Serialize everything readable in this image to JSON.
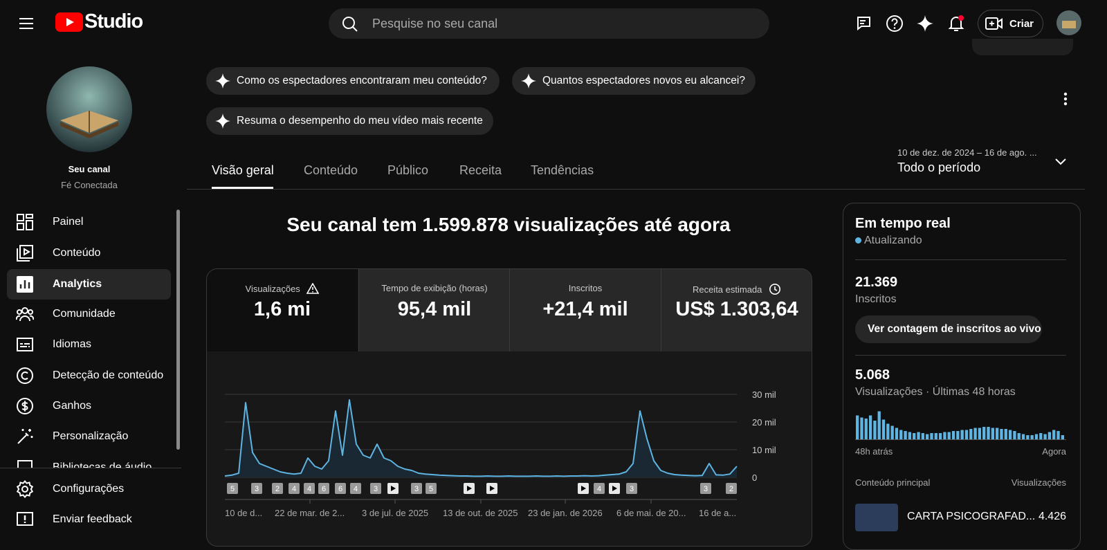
{
  "header": {
    "logo": "Studio",
    "search_placeholder": "Pesquise no seu canal",
    "create_button": "Criar"
  },
  "sidebar": {
    "channel_label": "Seu canal",
    "channel_name": "Fé Conectada",
    "menu": [
      "Painel",
      "Conteúdo",
      "Analytics",
      "Comunidade",
      "Idiomas",
      "Detecção de conteúdo",
      "Ganhos",
      "Personalização",
      "Bibliotecas de áudio"
    ],
    "footer": [
      "Configurações",
      "Enviar feedback"
    ]
  },
  "suggestions": [
    "Como os espectadores encontraram meu conteúdo?",
    "Quantos espectadores novos eu alcancei?",
    "Resuma o desempenho do meu vídeo mais recente"
  ],
  "tabs": [
    "Visão geral",
    "Conteúdo",
    "Público",
    "Receita",
    "Tendências"
  ],
  "date_range": {
    "dates": "10 de dez. de 2024 – 16 de ago. ...",
    "period": "Todo o período"
  },
  "headline": "Seu canal tem 1.599.878 visualizações até agora",
  "metrics": [
    {
      "label": "Visualizações",
      "value": "1,6 mi"
    },
    {
      "label": "Tempo de exibição (horas)",
      "value": "95,4 mil"
    },
    {
      "label": "Inscritos",
      "value": "+21,4 mil"
    },
    {
      "label": "Receita estimada",
      "value": "US$ 1.303,64"
    }
  ],
  "views_chart": {
    "type": "line",
    "color": "#5fb4e2",
    "ylim": [
      0,
      30000
    ],
    "yticks": [
      {
        "value": 0,
        "label": "0"
      },
      {
        "value": 10000,
        "label": "10 mil"
      },
      {
        "value": 20000,
        "label": "20 mil"
      },
      {
        "value": 30000,
        "label": "30 mil"
      }
    ],
    "xtick_labels": [
      "10 de d...",
      "22 de mar. de 2...",
      "3 de jul. de 2025",
      "13 de out. de 2025",
      "23 de jan. de 2026",
      "6 de mai. de 20...",
      "16 de a..."
    ],
    "markers": [
      "5",
      "3",
      "2",
      "4",
      "4",
      "6",
      "6",
      "4",
      "3",
      null,
      "3",
      "5",
      null,
      null,
      null,
      "4",
      null,
      "3",
      "3",
      "2"
    ],
    "values": [
      500,
      800,
      1500,
      27000,
      9000,
      5000,
      4000,
      3000,
      2000,
      1500,
      1200,
      1500,
      7000,
      4000,
      3000,
      6000,
      24000,
      8000,
      28000,
      12000,
      8000,
      7000,
      12000,
      7000,
      6000,
      4000,
      3000,
      2500,
      1500,
      1200,
      1000,
      800,
      700,
      600,
      500,
      500,
      400,
      400,
      500,
      400,
      400,
      500,
      400,
      400,
      400,
      500,
      400,
      400,
      500,
      400,
      500,
      500,
      600,
      500,
      600,
      800,
      1000,
      1200,
      2000,
      5000,
      24000,
      14000,
      6000,
      2500,
      1500,
      1000,
      800,
      700,
      600,
      700,
      5000,
      900,
      800,
      1200,
      4000
    ]
  },
  "realtime": {
    "title": "Em tempo real",
    "status": "Atualizando",
    "subscribers": "21.369",
    "subscribers_label": "Inscritos",
    "live_button": "Ver contagem de inscritos ao vivo",
    "views": "5.068",
    "views_label": "Visualizações · Últimas 48 horas",
    "start_label": "48h atrás",
    "end_label": "Agora",
    "views_48h": {
      "type": "bar",
      "color": "#5fb4e2",
      "values": [
        230,
        210,
        200,
        230,
        180,
        270,
        190,
        150,
        130,
        110,
        90,
        80,
        70,
        60,
        70,
        60,
        50,
        60,
        60,
        60,
        70,
        70,
        80,
        80,
        90,
        90,
        100,
        110,
        110,
        120,
        120,
        110,
        110,
        100,
        100,
        90,
        80,
        60,
        50,
        40,
        40,
        50,
        60,
        50,
        70,
        90,
        80,
        40
      ]
    },
    "top_content_label": "Conteúdo principal",
    "top_content_metric": "Visualizações",
    "top_video_title": "CARTA PSICOGRAFAD...",
    "top_video_views": "4.426"
  }
}
